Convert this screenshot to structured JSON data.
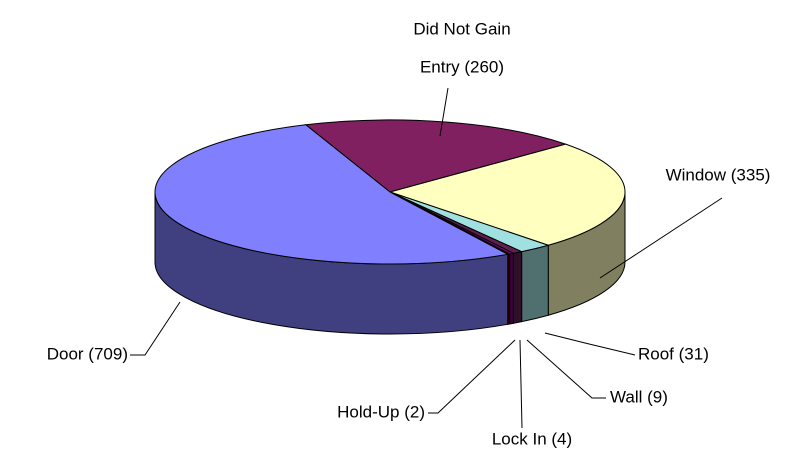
{
  "chart_data": {
    "type": "pie",
    "values": [
      260,
      335,
      31,
      9,
      4,
      2,
      709
    ],
    "value_labels": [
      [
        "Did Not Gain",
        "Entry (260)"
      ],
      "Window (335)",
      "Roof (31)",
      "Wall (9)",
      "Lock In (4)",
      "Hold-Up (2)",
      "Door (709)"
    ],
    "colors": [
      "#802060",
      "#ffffc0",
      "#a0e0e0",
      "#602050",
      "#800080",
      "#600000",
      "#8080ff"
    ]
  }
}
